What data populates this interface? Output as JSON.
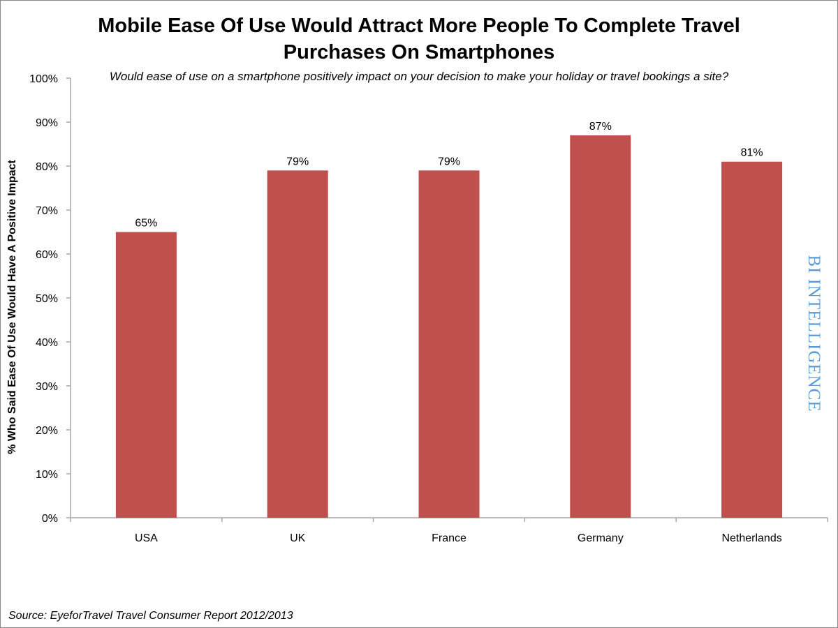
{
  "chart_data": {
    "type": "bar",
    "title": "Mobile Ease Of Use Would Attract More People To Complete Travel Purchases On Smartphones",
    "subtitle": "Would ease of use on a smartphone positively impact on your decision to make your holiday or travel bookings a site?",
    "ylabel": "% Who Said Ease Of Use Would Have A Positive Impact",
    "xlabel": "",
    "categories": [
      "USA",
      "UK",
      "France",
      "Germany",
      "Netherlands"
    ],
    "values": [
      65,
      79,
      79,
      87,
      81
    ],
    "data_labels": [
      "65%",
      "79%",
      "79%",
      "87%",
      "81%"
    ],
    "ylim": [
      0,
      100
    ],
    "yticks": [
      "0%",
      "10%",
      "20%",
      "30%",
      "40%",
      "50%",
      "60%",
      "70%",
      "80%",
      "90%",
      "100%"
    ],
    "grid": false,
    "bar_color": "#c0504d",
    "source": "Source: EyeforTravel Travel Consumer Report 2012/2013"
  },
  "watermark": "BI INTELLIGENCE"
}
